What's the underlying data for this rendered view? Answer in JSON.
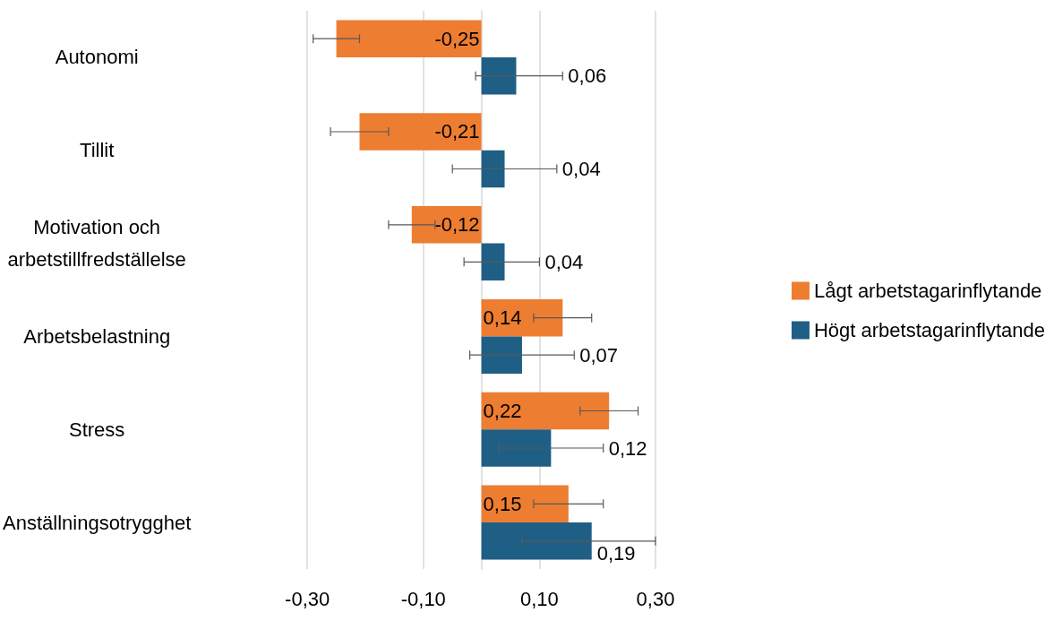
{
  "chart_data": {
    "type": "bar",
    "orientation": "horizontal",
    "categories": [
      "Autonomi",
      "Tillit",
      "Motivation och\narbetstillfredställelse",
      "Arbetsbelastning",
      "Stress",
      "Anställningsotrygghet"
    ],
    "series": [
      {
        "name": "Lågt arbetstagarinflytande",
        "color": "#ed7d31",
        "values": [
          -0.25,
          -0.21,
          -0.12,
          0.14,
          0.22,
          0.15
        ],
        "value_labels": [
          "-0,25",
          "-0,21",
          "-0,12",
          "0,14",
          "0,22",
          "0,15"
        ],
        "errors": [
          [
            -0.29,
            -0.21
          ],
          [
            -0.26,
            -0.16
          ],
          [
            -0.16,
            -0.08
          ],
          [
            0.09,
            0.19
          ],
          [
            0.17,
            0.27
          ],
          [
            0.09,
            0.21
          ]
        ]
      },
      {
        "name": "Högt arbetstagarinflytande",
        "color": "#1f5f85",
        "values": [
          0.06,
          0.04,
          0.04,
          0.07,
          0.12,
          0.19
        ],
        "value_labels": [
          "0,06",
          "0,04",
          "0,04",
          "0,07",
          "0,12",
          "0,19"
        ],
        "errors": [
          [
            -0.01,
            0.14
          ],
          [
            -0.05,
            0.13
          ],
          [
            -0.03,
            0.1
          ],
          [
            -0.02,
            0.16
          ],
          [
            0.03,
            0.21
          ],
          [
            0.07,
            0.3
          ]
        ]
      }
    ],
    "xlim": [
      -0.3,
      0.3
    ],
    "xticks": [
      {
        "value": -0.3,
        "label": "-0,30"
      },
      {
        "value": -0.1,
        "label": "-0,10"
      },
      {
        "value": 0.1,
        "label": "0,10"
      },
      {
        "value": 0.3,
        "label": "0,30"
      }
    ],
    "grid": "x",
    "legend": "right"
  }
}
